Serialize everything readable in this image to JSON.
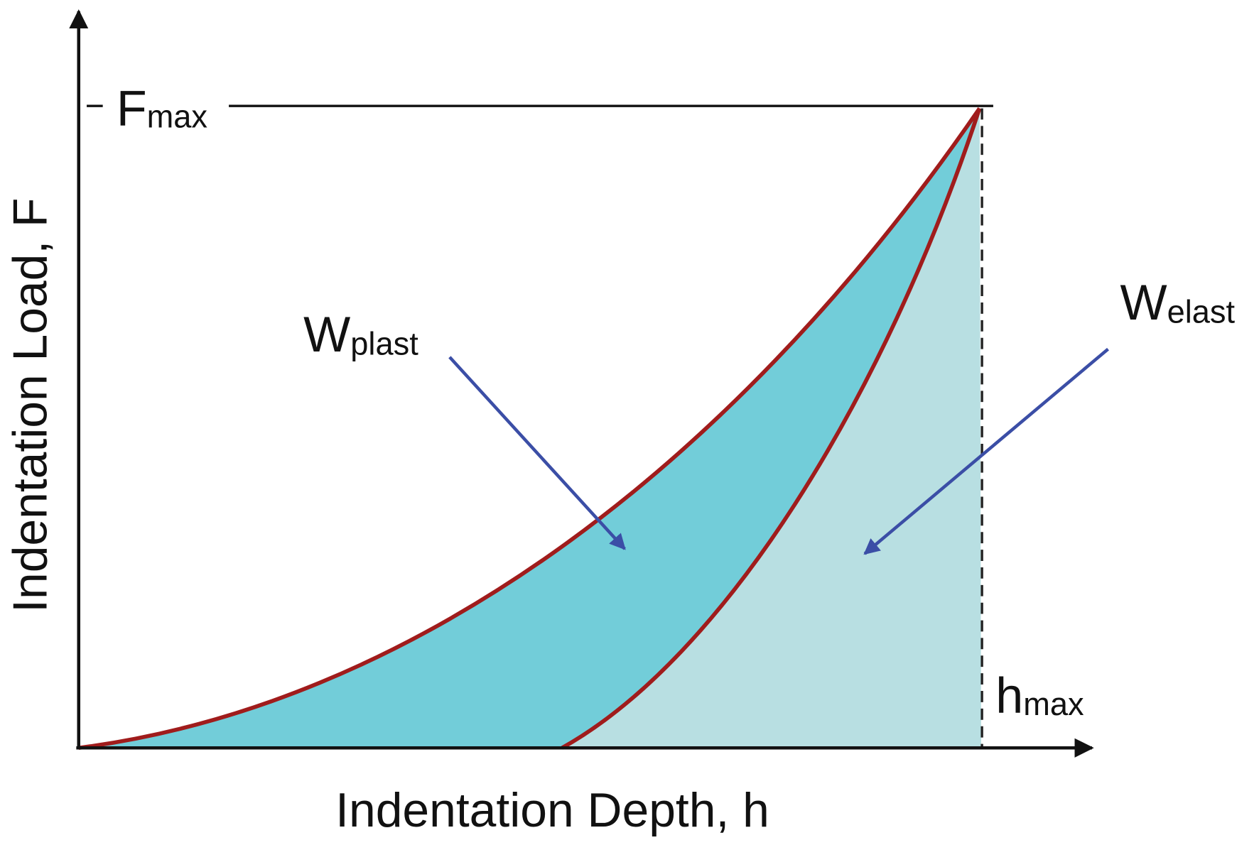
{
  "axes": {
    "y_label": "Indentation Load, F",
    "x_label": "Indentation Depth, h"
  },
  "labels": {
    "f_max": {
      "main": "F",
      "sub": "max"
    },
    "w_plast": {
      "main": "W",
      "sub": "plast"
    },
    "w_elast": {
      "main": "W",
      "sub": "elast"
    },
    "h_max": {
      "main": "h",
      "sub": "max"
    }
  }
}
